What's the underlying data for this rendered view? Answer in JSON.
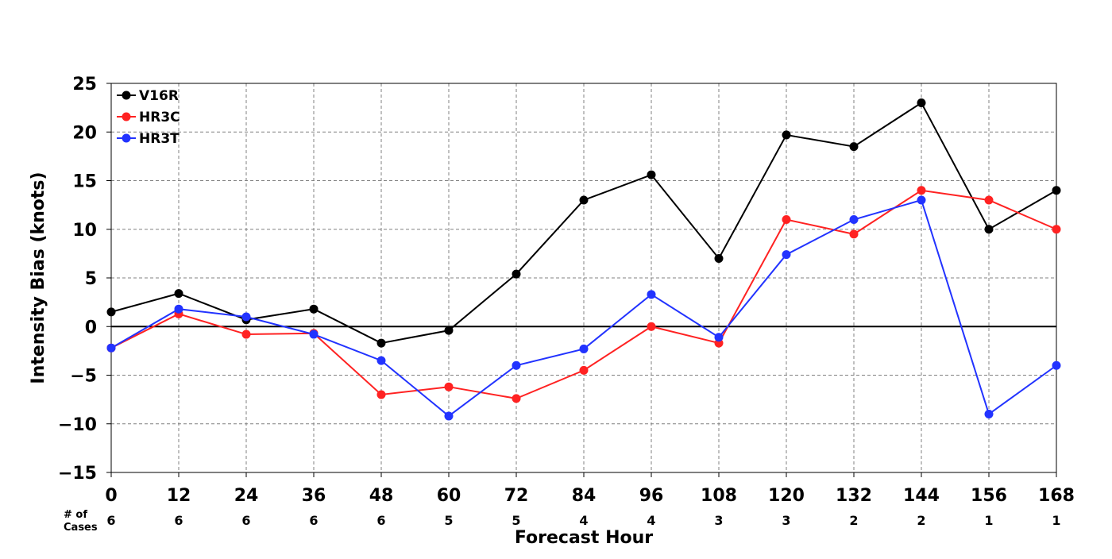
{
  "chart_data": {
    "type": "line",
    "xlabel": "Forecast Hour",
    "ylabel": "Intensity Bias (knots)",
    "x": [
      0,
      12,
      24,
      36,
      48,
      60,
      72,
      84,
      96,
      108,
      120,
      132,
      144,
      156,
      168
    ],
    "xticks": [
      "0",
      "12",
      "24",
      "36",
      "48",
      "60",
      "72",
      "84",
      "96",
      "108",
      "120",
      "132",
      "144",
      "156",
      "168"
    ],
    "xlim": [
      0,
      168
    ],
    "ylim": [
      -15,
      25
    ],
    "yticks": [
      -15,
      -10,
      -5,
      0,
      5,
      10,
      15,
      20,
      25
    ],
    "ytick_labels": [
      "−15",
      "−10",
      "−5",
      "0",
      "5",
      "10",
      "15",
      "20",
      "25"
    ],
    "grid": true,
    "zero_line": true,
    "legend_position": "top-left",
    "cases_label": "# of\nCases",
    "cases": [
      6,
      6,
      6,
      6,
      6,
      5,
      5,
      4,
      4,
      3,
      3,
      2,
      2,
      1,
      1
    ],
    "series": [
      {
        "name": "V16R",
        "color": "#000000",
        "values": [
          1.5,
          3.4,
          0.7,
          1.8,
          -1.7,
          -0.4,
          5.4,
          13.0,
          15.6,
          7.0,
          19.7,
          18.5,
          23.0,
          10.0,
          14.0
        ]
      },
      {
        "name": "HR3C",
        "color": "#ff2222",
        "values": [
          -2.2,
          1.3,
          -0.8,
          -0.7,
          -7.0,
          -6.2,
          -7.4,
          -4.5,
          0.0,
          -1.7,
          11.0,
          9.5,
          14.0,
          13.0,
          10.0
        ]
      },
      {
        "name": "HR3T",
        "color": "#2233ff",
        "values": [
          -2.2,
          1.8,
          1.0,
          -0.8,
          -3.5,
          -9.2,
          -4.0,
          -2.3,
          3.3,
          -1.1,
          7.4,
          11.0,
          13.0,
          -9.0,
          -4.0
        ]
      }
    ]
  }
}
